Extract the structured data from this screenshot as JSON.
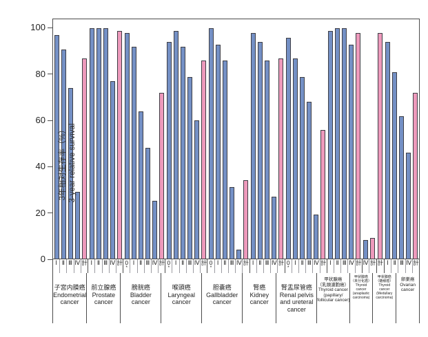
{
  "colors": {
    "stage_bar_fill": "#7490c5",
    "total_bar_fill": "#ee9abc",
    "bar_outline": "#3d3d44",
    "axis": "#4a4a4a"
  },
  "y_axis": {
    "title_ja": "3年相対生存率（%）",
    "title_en": "3-year relative survival",
    "ticks": [
      0,
      20,
      40,
      60,
      80,
      100
    ]
  },
  "chart_data": {
    "type": "bar",
    "title": "",
    "xlabel": "",
    "ylabel": "3年相対生存率（%） / 3-year relative survival",
    "ylim": [
      0,
      104
    ],
    "grid": false,
    "legend": "none",
    "note": "blue bars = stage-specific survival, pink bars = 計 (total)",
    "total_stage_label": "計",
    "groups": [
      {
        "name_ja_lines": [
          "子宮内膜癌"
        ],
        "name_en_lines": [
          "Endometrial",
          "cancer"
        ],
        "label_size": "normal",
        "name_flex": 5,
        "stages": [
          "Ⅰ",
          "Ⅱ",
          "Ⅲ",
          "Ⅳ",
          "計"
        ],
        "values": [
          97,
          91,
          74,
          29,
          87
        ]
      },
      {
        "name_ja_lines": [
          "前立腺癌"
        ],
        "name_en_lines": [
          "Prostate",
          "cancer"
        ],
        "label_size": "normal",
        "name_flex": 5,
        "stages": [
          "Ⅰ",
          "Ⅱ",
          "Ⅲ",
          "Ⅳ",
          "計"
        ],
        "values": [
          100,
          100,
          100,
          77,
          99
        ]
      },
      {
        "name_ja_lines": [
          "膀胱癌"
        ],
        "name_en_lines": [
          "Bladder",
          "cancer"
        ],
        "label_size": "normal",
        "name_flex": 6,
        "stages": [
          "0*",
          "Ⅰ",
          "Ⅱ",
          "Ⅲ",
          "Ⅳ",
          "計"
        ],
        "values": [
          98,
          92,
          64,
          48,
          25,
          72
        ]
      },
      {
        "name_ja_lines": [
          "喉頭癌"
        ],
        "name_en_lines": [
          "Laryngeal",
          "cancer"
        ],
        "label_size": "normal",
        "name_flex": 6,
        "stages": [
          "0*",
          "Ⅰ",
          "Ⅱ",
          "Ⅲ",
          "Ⅳ",
          "計"
        ],
        "values": [
          94,
          99,
          92,
          79,
          60,
          86
        ]
      },
      {
        "name_ja_lines": [
          "胆嚢癌"
        ],
        "name_en_lines": [
          "Gallbladder",
          "cancer"
        ],
        "label_size": "normal",
        "name_flex": 6,
        "stages": [
          "0*",
          "Ⅰ",
          "Ⅱ",
          "Ⅲ",
          "Ⅳ",
          "計"
        ],
        "values": [
          100,
          93,
          86,
          31,
          4,
          34
        ]
      },
      {
        "name_ja_lines": [
          "腎癌"
        ],
        "name_en_lines": [
          "Kidney",
          "cancer"
        ],
        "label_size": "normal",
        "name_flex": 5,
        "stages": [
          "Ⅰ",
          "Ⅱ",
          "Ⅲ",
          "Ⅳ",
          "計"
        ],
        "values": [
          98,
          94,
          86,
          27,
          87
        ]
      },
      {
        "name_ja_lines": [
          "腎盂尿管癌"
        ],
        "name_en_lines": [
          "Renal pelvis",
          "and ureteral",
          "cancer"
        ],
        "label_size": "normal",
        "name_flex": 6,
        "stages": [
          "0*",
          "Ⅰ",
          "Ⅱ",
          "Ⅲ",
          "Ⅳ",
          "計"
        ],
        "values": [
          96,
          87,
          79,
          68,
          19,
          56
        ]
      },
      {
        "name_ja_lines": [
          "甲状腺癌",
          "（乳頭濾胞癌）"
        ],
        "name_en_lines": [
          "Thyroid cancer",
          "(papillary/",
          "follicular cancer)"
        ],
        "label_size": "small",
        "name_flex": 4.8,
        "stages": [
          "Ⅰ",
          "Ⅱ",
          "Ⅲ",
          "Ⅳ",
          "計"
        ],
        "values": [
          99,
          100,
          100,
          93,
          98
        ]
      },
      {
        "name_ja_lines": [
          "甲状腺癌",
          "（未分化癌）"
        ],
        "name_en_lines": [
          "Thyroid",
          "cancer",
          "(anaplastic",
          "carcinoma)"
        ],
        "label_size": "tiny",
        "name_flex": 3.4,
        "stages": [
          "Ⅳ",
          "計"
        ],
        "values": [
          8,
          9
        ]
      },
      {
        "name_ja_lines": [
          "甲状腺癌",
          "（髄様癌）"
        ],
        "name_en_lines": [
          "Thyroid",
          "cancer",
          "(Medullary",
          "carcinoma)"
        ],
        "label_size": "tiny",
        "name_flex": 3.4,
        "stages": [
          "計"
        ],
        "values": [
          98
        ]
      },
      {
        "name_ja_lines": [
          "卵巣癌"
        ],
        "name_en_lines": [
          "Ovarian",
          "cancer"
        ],
        "label_size": "small",
        "name_flex": 3.4,
        "stages": [
          "Ⅰ",
          "Ⅱ",
          "Ⅲ",
          "Ⅳ",
          "計"
        ],
        "values": [
          94,
          81,
          62,
          46,
          72
        ]
      }
    ]
  }
}
